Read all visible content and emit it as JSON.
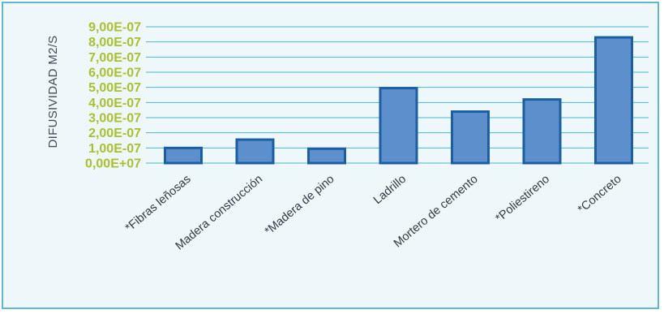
{
  "chart_data": {
    "type": "bar",
    "ylabel": "DIFUSIVIDAD  M2/S",
    "ylim": [
      0,
      9e-07
    ],
    "yticks": [
      0,
      1e-07,
      2e-07,
      3e-07,
      4e-07,
      5e-07,
      6e-07,
      7e-07,
      8e-07,
      9e-07
    ],
    "ytick_labels": [
      "0,00E+07",
      "1,00E-07",
      "2,00E-07",
      "3,00E-07",
      "4,00E-07",
      "5,00E-07",
      "6,00E-07",
      "7,00E-07",
      "8,00E-07",
      "9,00E-07"
    ],
    "categories": [
      "*Fibras leñosas",
      "Madera construcción",
      "*Madera de pino",
      "Ladrillo",
      "Mortero de cemento",
      "*Poliestireno",
      "*Concreto"
    ],
    "values": [
      1e-07,
      1.55e-07,
      9.5e-08,
      4.95e-07,
      3.4e-07,
      4.2e-07,
      8.3e-07
    ],
    "grid": true,
    "colors": {
      "bar_fill": "#5d8fcc",
      "bar_stroke": "#1a5fa6",
      "gridline": "#48b6d4",
      "tick_label": "#a9c12e",
      "frame": "#5fb7d2",
      "background": "#eef7fa"
    }
  }
}
